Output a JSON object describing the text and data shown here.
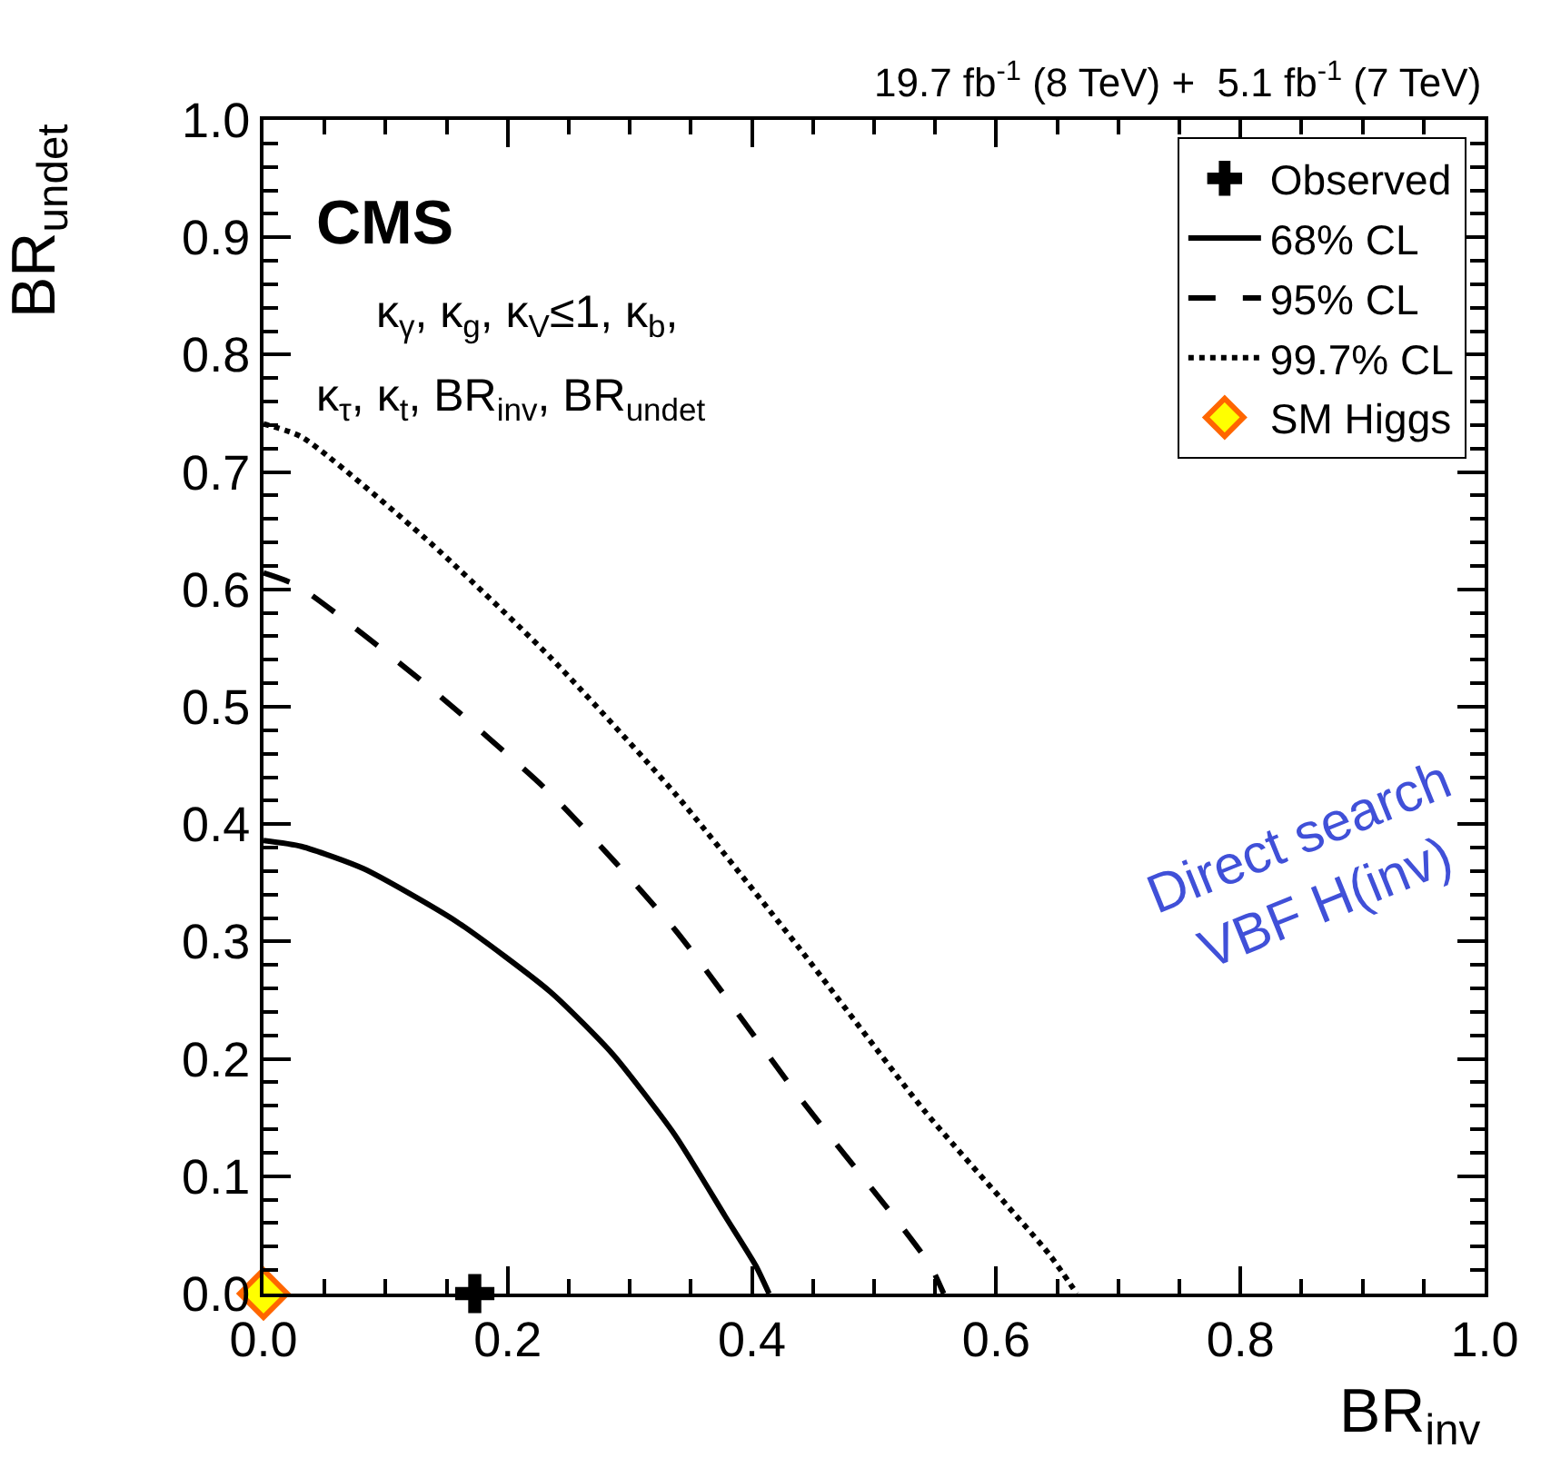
{
  "chart_data": {
    "type": "line",
    "xlabel": "BR$_{inv}$",
    "ylabel": "BR$_{undet}$",
    "xlim": [
      0,
      1
    ],
    "xticks": [
      {
        "value": 0,
        "label": "0.0"
      },
      0.2,
      0.4,
      0.6,
      0.8,
      {
        "value": 1,
        "label": "1.0"
      }
    ],
    "ylim": [
      0,
      1
    ],
    "yticks": [
      {
        "value": 0,
        "label": "0.0"
      },
      0.1,
      0.2,
      0.3,
      0.4,
      0.5,
      0.6,
      0.7,
      0.8,
      0.9,
      {
        "value": 1,
        "label": "1.0"
      }
    ],
    "grid": false,
    "legend": "top right",
    "annotations": [
      "19.7 fb$^{-1}$ (8 TeV) +  5.1 fb$^{-1}$ (7 TeV)",
      "CMS",
      "κ$_{γ}$, κ$_{g}$, κ$_{V}$≤1, κ$_{b}$,",
      "κ$_{τ}$, κ$_{t}$, BR$_{inv}$, BR$_{undet}$",
      "Direct search\nVBF H(inv)"
    ],
    "series": [
      {
        "name": "Observed",
        "type": "scatter",
        "marker": "cross",
        "color": "#000000",
        "x": [
          0.173
        ],
        "values": [
          0
        ]
      },
      {
        "name": "68% CL",
        "marker": "none",
        "line_style": "solid",
        "color": "#000000",
        "x": [
          0,
          0.031,
          0.082,
          0.158,
          0.235,
          0.286,
          0.337,
          0.378,
          0.403,
          0.414
        ],
        "values": [
          0.386,
          0.381,
          0.362,
          0.317,
          0.257,
          0.204,
          0.135,
          0.066,
          0.024,
          0
        ]
      },
      {
        "name": "95% CL",
        "marker": "none",
        "line_style": "dashed",
        "color": "#000000",
        "x": [
          0,
          0.028,
          0.133,
          0.235,
          0.337,
          0.439,
          0.516,
          0.546,
          0.557
        ],
        "values": [
          0.614,
          0.603,
          0.519,
          0.426,
          0.31,
          0.167,
          0.066,
          0.024,
          0
        ]
      },
      {
        "name": "99.7% CL",
        "marker": "none",
        "line_style": "dotted",
        "color": "#000000",
        "x": [
          0,
          0.031,
          0.133,
          0.235,
          0.337,
          0.439,
          0.541,
          0.643,
          0.666
        ],
        "values": [
          0.741,
          0.73,
          0.643,
          0.542,
          0.426,
          0.294,
          0.156,
          0.034,
          0
        ]
      },
      {
        "name": "SM Higgs",
        "type": "scatter",
        "marker": "diamond",
        "color": "#ffff00",
        "x": [
          0
        ],
        "values": [
          0
        ]
      }
    ]
  }
}
